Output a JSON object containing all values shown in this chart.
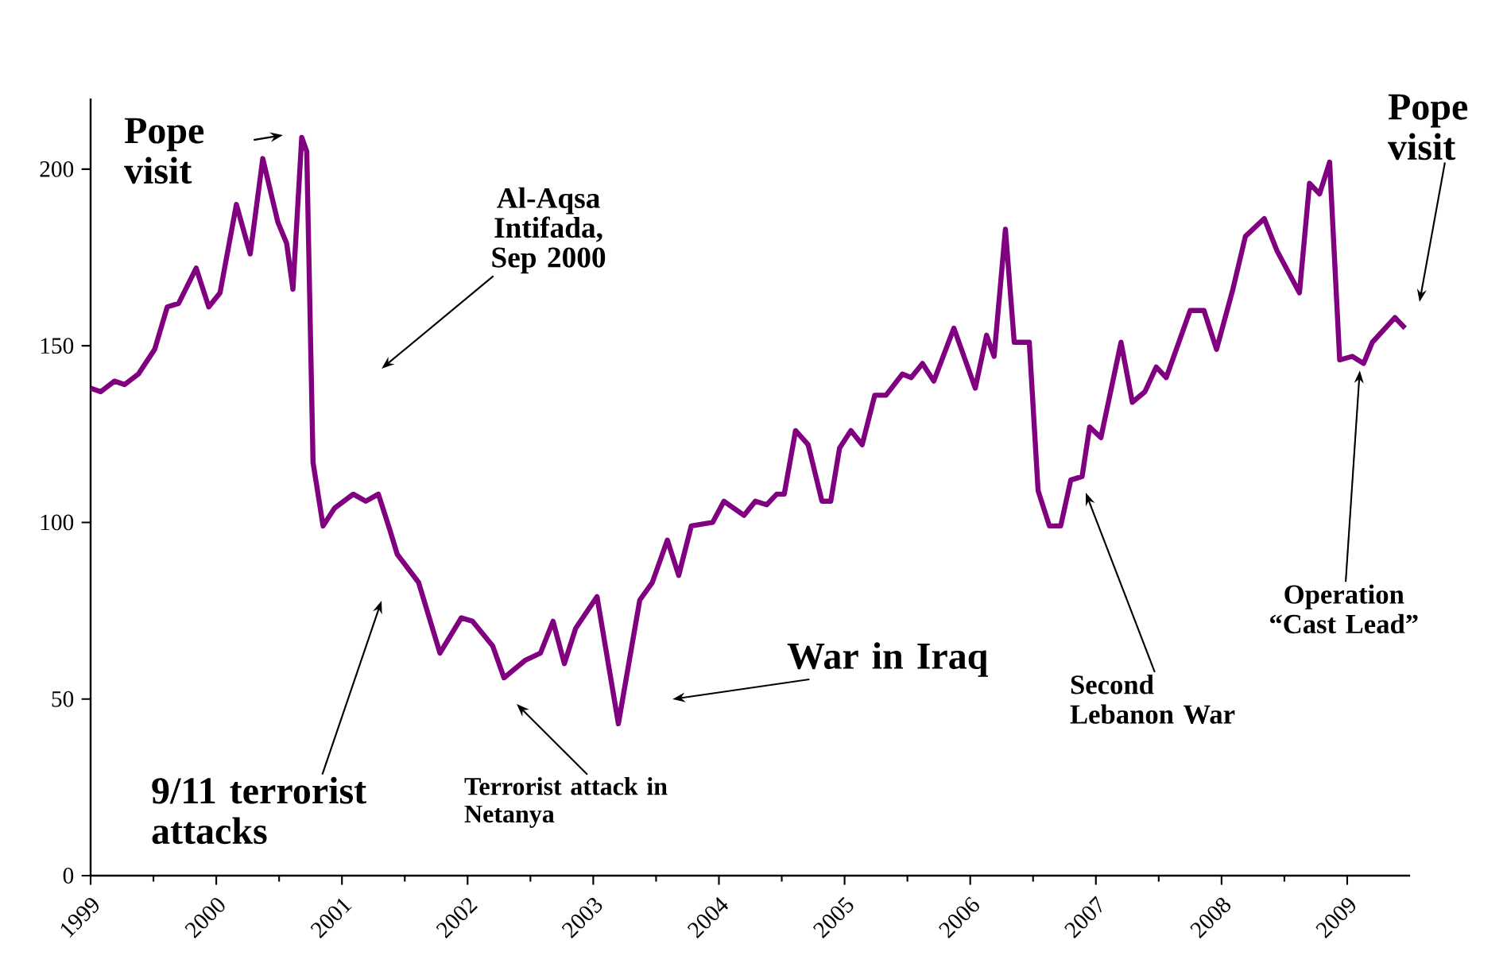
{
  "chart_data": {
    "type": "line",
    "x": [
      1999.0,
      1999.08,
      1999.19,
      1999.27,
      1999.38,
      1999.51,
      1999.61,
      1999.7,
      1999.84,
      1999.94,
      2000.03,
      2000.16,
      2000.27,
      2000.37,
      2000.49,
      2000.56,
      2000.61,
      2000.68,
      2000.72,
      2000.77,
      2000.85,
      2000.94,
      2001.09,
      2001.19,
      2001.29,
      2001.38,
      2001.44,
      2001.61,
      2001.78,
      2001.95,
      2002.04,
      2002.2,
      2002.29,
      2002.46,
      2002.58,
      2002.68,
      2002.77,
      2002.86,
      2003.03,
      2003.2,
      2003.37,
      2003.47,
      2003.59,
      2003.68,
      2003.78,
      2003.95,
      2004.04,
      2004.2,
      2004.29,
      2004.38,
      2004.46,
      2004.52,
      2004.61,
      2004.71,
      2004.82,
      2004.89,
      2004.96,
      2005.05,
      2005.14,
      2005.24,
      2005.33,
      2005.46,
      2005.53,
      2005.62,
      2005.71,
      2005.87,
      2006.04,
      2006.13,
      2006.19,
      2006.28,
      2006.35,
      2006.47,
      2006.54,
      2006.63,
      2006.72,
      2006.8,
      2006.89,
      2006.95,
      2007.04,
      2007.2,
      2007.29,
      2007.39,
      2007.48,
      2007.56,
      2007.75,
      2007.86,
      2007.96,
      2008.09,
      2008.19,
      2008.34,
      2008.44,
      2008.62,
      2008.7,
      2008.78,
      2008.86,
      2008.94,
      2009.04,
      2009.13,
      2009.2,
      2009.38,
      2009.46
    ],
    "series": [
      {
        "color": "#800080",
        "values": [
          138,
          137,
          140,
          139,
          142,
          149,
          161,
          162,
          172,
          161,
          165,
          190,
          176,
          203,
          185,
          179,
          166,
          209,
          205,
          117,
          99,
          104,
          108,
          106,
          108,
          98,
          91,
          83,
          63,
          73,
          72,
          65,
          56,
          61,
          63,
          72,
          60,
          70,
          79,
          43,
          78,
          83,
          95,
          85,
          99,
          100,
          106,
          102,
          106,
          105,
          108,
          108,
          126,
          122,
          106,
          106,
          121,
          126,
          122,
          136,
          136,
          142,
          141,
          145,
          140,
          155,
          138,
          153,
          147,
          183,
          151,
          151,
          109,
          99,
          99,
          112,
          113,
          127,
          124,
          151,
          134,
          137,
          144,
          141,
          160,
          160,
          149,
          166,
          181,
          186,
          177,
          165,
          196,
          193,
          202,
          146,
          147,
          145,
          151,
          158,
          155
        ]
      }
    ],
    "xlim": [
      1999,
      2009.5
    ],
    "ylim": [
      0,
      220
    ],
    "xticks": [
      1999,
      2000,
      2001,
      2002,
      2003,
      2004,
      2005,
      2006,
      2007,
      2008,
      2009
    ],
    "yticks": [
      0,
      50,
      100,
      150,
      200
    ],
    "annotations": [
      "Pope visit",
      "Al-Aqsa Intifada, Sep 2000",
      "9/11 terrorist attacks",
      "Terrorist attack in Netanya",
      "War in Iraq",
      "Second Lebanon War",
      {
        "text": "Operation “Cast Lead”",
        "x": 2009.1,
        "y": 143
      },
      "Pope visit"
    ]
  }
}
